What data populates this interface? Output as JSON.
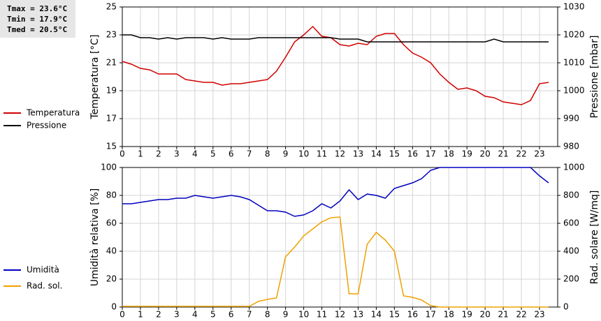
{
  "chart_data": [
    {
      "type": "line",
      "ylabel": "Temperatura [°C]",
      "y2label": "Pressione [mbar]",
      "annotations": [
        "Tmax = 23.6°C",
        "Tmin = 17.9°C",
        "Tmed = 20.5°C"
      ],
      "x": [
        0,
        0.5,
        1,
        1.5,
        2,
        2.5,
        3,
        3.5,
        4,
        4.5,
        5,
        5.5,
        6,
        6.5,
        7,
        7.5,
        8,
        8.5,
        9,
        9.5,
        10,
        10.5,
        11,
        11.5,
        12,
        12.5,
        13,
        13.5,
        14,
        14.5,
        15,
        15.5,
        16,
        16.5,
        17,
        17.5,
        18,
        18.5,
        19,
        19.5,
        20,
        20.5,
        21,
        21.5,
        22,
        22.5,
        23,
        23.5
      ],
      "xlim": [
        0,
        24
      ],
      "xticks": [
        0,
        1,
        2,
        3,
        4,
        5,
        6,
        7,
        8,
        9,
        10,
        11,
        12,
        13,
        14,
        15,
        16,
        17,
        18,
        19,
        20,
        21,
        22,
        23
      ],
      "ylim": [
        15,
        25
      ],
      "yticks": [
        15,
        17,
        19,
        21,
        23,
        25
      ],
      "y2lim": [
        980,
        1030
      ],
      "y2ticks": [
        980,
        990,
        1000,
        1010,
        1020,
        1030
      ],
      "grid": true,
      "series": [
        {
          "name": "Temperatura",
          "color": "#d00000",
          "axis": "y",
          "values": [
            21.1,
            20.9,
            20.6,
            20.5,
            20.2,
            20.2,
            20.2,
            19.8,
            19.7,
            19.6,
            19.6,
            19.4,
            19.5,
            19.5,
            19.6,
            19.7,
            19.8,
            20.4,
            21.4,
            22.5,
            23.0,
            23.6,
            22.9,
            22.8,
            22.3,
            22.2,
            22.4,
            22.3,
            22.9,
            23.1,
            23.1,
            22.3,
            21.7,
            21.4,
            21.0,
            20.2,
            19.6,
            19.1,
            19.2,
            19.0,
            18.6,
            18.5,
            18.2,
            18.1,
            18.0,
            18.3,
            19.5,
            19.6
          ]
        },
        {
          "name": "Pressione",
          "color": "#000000",
          "axis": "y2",
          "values": [
            1020,
            1020,
            1019,
            1019,
            1018.5,
            1019,
            1018.5,
            1019,
            1019,
            1019,
            1018.5,
            1019,
            1018.5,
            1018.5,
            1018.5,
            1019,
            1019,
            1019,
            1019,
            1019,
            1019,
            1019,
            1019,
            1019,
            1018.5,
            1018.5,
            1018.5,
            1017.5,
            1017.5,
            1017.5,
            1017.5,
            1017.5,
            1017.5,
            1017.5,
            1017.5,
            1017.5,
            1017.5,
            1017.5,
            1017.5,
            1017.5,
            1017.5,
            1018.5,
            1017.5,
            1017.5,
            1017.5,
            1017.5,
            1017.5,
            1017.5
          ]
        }
      ]
    },
    {
      "type": "line",
      "ylabel": "Umidità relativa [%]",
      "y2label": "Rad. solare [W/mq]",
      "x": [
        0,
        0.5,
        1,
        1.5,
        2,
        2.5,
        3,
        3.5,
        4,
        4.5,
        5,
        5.5,
        6,
        6.5,
        7,
        7.5,
        8,
        8.5,
        9,
        9.5,
        10,
        10.5,
        11,
        11.5,
        12,
        12.5,
        13,
        13.5,
        14,
        14.5,
        15,
        15.5,
        16,
        16.5,
        17,
        17.5,
        18,
        18.5,
        19,
        19.5,
        20,
        20.5,
        21,
        21.5,
        22,
        22.5,
        23,
        23.5
      ],
      "xlim": [
        0,
        24
      ],
      "xticks": [
        0,
        1,
        2,
        3,
        4,
        5,
        6,
        7,
        8,
        9,
        10,
        11,
        12,
        13,
        14,
        15,
        16,
        17,
        18,
        19,
        20,
        21,
        22,
        23
      ],
      "ylim": [
        0,
        100
      ],
      "yticks": [
        0,
        20,
        40,
        60,
        80,
        100
      ],
      "y2lim": [
        0,
        1000
      ],
      "y2ticks": [
        0,
        200,
        400,
        600,
        800,
        1000
      ],
      "grid": true,
      "series": [
        {
          "name": "Umidità",
          "color": "#0000c0",
          "axis": "y",
          "values": [
            74,
            74,
            75,
            76,
            77,
            77,
            78,
            78,
            80,
            79,
            78,
            79,
            80,
            79,
            77,
            73,
            69,
            69,
            68,
            65,
            66,
            69,
            74,
            71,
            76,
            84,
            77,
            81,
            80,
            78,
            85,
            87,
            89,
            92,
            98,
            100,
            100,
            100,
            100,
            100,
            100,
            100,
            100,
            100,
            100,
            100,
            94,
            89
          ]
        },
        {
          "name": "Rad. sol.",
          "color": "#f0a000",
          "axis": "y2",
          "values": [
            5,
            5,
            5,
            5,
            5,
            5,
            5,
            5,
            5,
            5,
            5,
            5,
            5,
            5,
            5,
            40,
            55,
            65,
            360,
            430,
            510,
            560,
            610,
            640,
            645,
            95,
            95,
            450,
            535,
            480,
            400,
            80,
            70,
            50,
            10,
            0,
            0,
            0,
            0,
            0,
            0,
            0,
            0,
            0,
            0,
            0,
            0,
            0
          ]
        }
      ]
    }
  ]
}
